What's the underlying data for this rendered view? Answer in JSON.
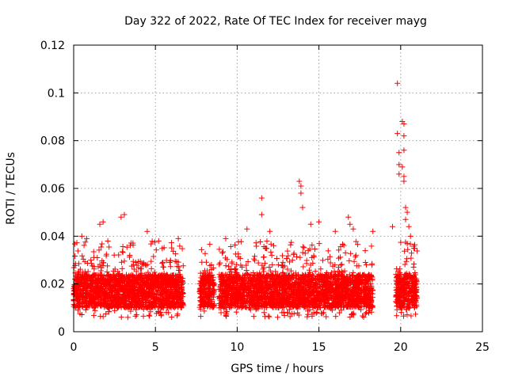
{
  "chart_data": {
    "type": "scatter",
    "title": "Day 322 of 2022, Rate Of TEC Index for receiver mayg",
    "xlabel": "GPS time / hours",
    "ylabel": "ROTI / TECUs",
    "xlim": [
      0,
      25
    ],
    "ylim": [
      0,
      0.12
    ],
    "x_ticks": [
      0,
      5,
      10,
      15,
      20,
      25
    ],
    "x_tick_labels": [
      "0",
      "5",
      "10",
      "15",
      "20",
      "25"
    ],
    "y_ticks": [
      0,
      0.02,
      0.04,
      0.06,
      0.08,
      0.1,
      0.12
    ],
    "y_tick_labels": [
      "0",
      "0.02",
      "0.04",
      "0.06",
      "0.08",
      "0.1",
      "0.12"
    ],
    "grid": true,
    "marker": "plus",
    "color": "#ff0000",
    "observation_windows_hours": [
      [
        0.0,
        6.7
      ],
      [
        7.7,
        8.6
      ],
      [
        8.9,
        13.8
      ],
      [
        13.8,
        18.3
      ],
      [
        19.7,
        21.0
      ]
    ],
    "typical_range": [
      0.006,
      0.03
    ],
    "outliers": [
      {
        "x": 0.5,
        "y": 0.04
      },
      {
        "x": 0.8,
        "y": 0.039
      },
      {
        "x": 1.6,
        "y": 0.045
      },
      {
        "x": 1.8,
        "y": 0.046
      },
      {
        "x": 2.9,
        "y": 0.048
      },
      {
        "x": 3.1,
        "y": 0.049
      },
      {
        "x": 4.5,
        "y": 0.042
      },
      {
        "x": 5.2,
        "y": 0.038
      },
      {
        "x": 6.4,
        "y": 0.039
      },
      {
        "x": 9.3,
        "y": 0.039
      },
      {
        "x": 10.6,
        "y": 0.043
      },
      {
        "x": 11.5,
        "y": 0.056
      },
      {
        "x": 11.5,
        "y": 0.049
      },
      {
        "x": 12.0,
        "y": 0.042
      },
      {
        "x": 13.8,
        "y": 0.063
      },
      {
        "x": 13.9,
        "y": 0.061
      },
      {
        "x": 13.9,
        "y": 0.058
      },
      {
        "x": 14.0,
        "y": 0.052
      },
      {
        "x": 14.5,
        "y": 0.045
      },
      {
        "x": 15.0,
        "y": 0.046
      },
      {
        "x": 16.0,
        "y": 0.042
      },
      {
        "x": 16.8,
        "y": 0.048
      },
      {
        "x": 16.9,
        "y": 0.045
      },
      {
        "x": 17.1,
        "y": 0.043
      },
      {
        "x": 18.3,
        "y": 0.042
      },
      {
        "x": 19.5,
        "y": 0.044
      },
      {
        "x": 19.8,
        "y": 0.104
      },
      {
        "x": 19.8,
        "y": 0.083
      },
      {
        "x": 19.9,
        "y": 0.075
      },
      {
        "x": 19.9,
        "y": 0.07
      },
      {
        "x": 19.9,
        "y": 0.066
      },
      {
        "x": 20.1,
        "y": 0.088
      },
      {
        "x": 20.2,
        "y": 0.087
      },
      {
        "x": 20.2,
        "y": 0.082
      },
      {
        "x": 20.2,
        "y": 0.076
      },
      {
        "x": 20.1,
        "y": 0.069
      },
      {
        "x": 20.2,
        "y": 0.065
      },
      {
        "x": 20.2,
        "y": 0.063
      },
      {
        "x": 20.3,
        "y": 0.052
      },
      {
        "x": 20.4,
        "y": 0.05
      },
      {
        "x": 20.3,
        "y": 0.047
      },
      {
        "x": 20.5,
        "y": 0.044
      },
      {
        "x": 20.6,
        "y": 0.04
      }
    ]
  }
}
